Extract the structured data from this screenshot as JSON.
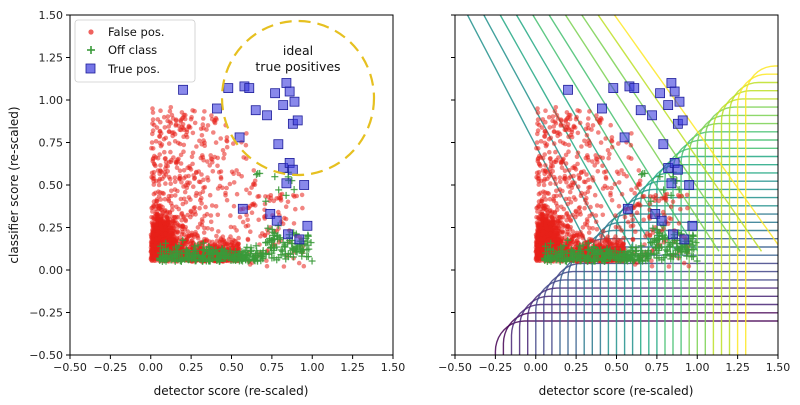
{
  "chart_data": [
    {
      "type": "scatter",
      "panel": "left",
      "xlabel": "detector score (re-scaled)",
      "ylabel": "classifier score (re-scaled)",
      "xlim": [
        -0.5,
        1.5
      ],
      "ylim": [
        -0.5,
        1.5
      ],
      "xticks": [
        "−0.50",
        "−0.25",
        "0.00",
        "0.25",
        "0.50",
        "0.75",
        "1.00",
        "1.25",
        "1.50"
      ],
      "yticks": [
        "−0.50",
        "−0.25",
        "0.00",
        "0.25",
        "0.50",
        "0.75",
        "1.00",
        "1.25",
        "1.50"
      ],
      "grid": false,
      "legend_position": "top-left",
      "series": [
        {
          "name": "False pos.",
          "marker": "circle",
          "color": "#e8201a",
          "description_points": "dense cloud x 0.0-0.25, y 0.0-0.4; sparse scatter toward x 0.7, y 1.1"
        },
        {
          "name": "Off class",
          "marker": "plus",
          "color": "#3a9a3a",
          "description_points": "band along y 0.05-0.25 from x 0.05 to 1.0"
        },
        {
          "name": "True pos.",
          "marker": "square",
          "color": "#3b3bdd",
          "points": [
            [
              0.2,
              1.06
            ],
            [
              0.41,
              0.95
            ],
            [
              0.48,
              1.07
            ],
            [
              0.58,
              1.08
            ],
            [
              0.61,
              1.07
            ],
            [
              0.65,
              0.94
            ],
            [
              0.55,
              0.78
            ],
            [
              0.72,
              0.91
            ],
            [
              0.77,
              1.04
            ],
            [
              0.79,
              0.74
            ],
            [
              0.82,
              0.97
            ],
            [
              0.84,
              1.1
            ],
            [
              0.86,
              1.05
            ],
            [
              0.89,
              0.99
            ],
            [
              0.88,
              0.86
            ],
            [
              0.91,
              0.88
            ],
            [
              0.82,
              0.6
            ],
            [
              0.86,
              0.63
            ],
            [
              0.88,
              0.59
            ],
            [
              0.84,
              0.51
            ],
            [
              0.95,
              0.5
            ],
            [
              0.57,
              0.36
            ],
            [
              0.74,
              0.33
            ],
            [
              0.78,
              0.29
            ],
            [
              0.85,
              0.21
            ],
            [
              0.97,
              0.26
            ],
            [
              0.92,
              0.18
            ]
          ]
        }
      ],
      "annotation": {
        "line1": "ideal",
        "line2": "true positives",
        "shape": "dashed circle",
        "color": "#e6c020"
      }
    },
    {
      "type": "scatter",
      "panel": "right",
      "xlabel": "detector score (re-scaled)",
      "ylabel": "",
      "xlim": [
        -0.5,
        1.5
      ],
      "ylim": [
        -0.5,
        1.5
      ],
      "xticks": [
        "−0.50",
        "−0.25",
        "0.00",
        "0.25",
        "0.50",
        "0.75",
        "1.00",
        "1.25",
        "1.50"
      ],
      "overlay": "contour lines (viridis colormap) of classifier decision function",
      "series_same_as": "left"
    }
  ],
  "colors": {
    "false_pos": "#e8201a",
    "off_class": "#3a9a3a",
    "true_pos": "#3b3bdd",
    "annotation": "#e6c020"
  }
}
